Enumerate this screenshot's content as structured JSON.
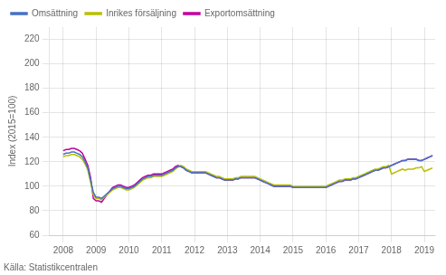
{
  "chart_data": {
    "type": "line",
    "ylabel": "Index (2015=100)",
    "annotations": [
      "Källa: Statistikcentralen"
    ],
    "xlim": [
      2007.58,
      2019.33
    ],
    "xticks": [
      2008,
      2009,
      2010,
      2011,
      2012,
      2013,
      2014,
      2015,
      2016,
      2017,
      2018,
      2019
    ],
    "ylim": [
      60,
      230
    ],
    "yticks": [
      60,
      80,
      100,
      120,
      140,
      160,
      180,
      200,
      220
    ],
    "grid": true,
    "legend": "upper left",
    "x": [
      2008,
      2008.0833333333333,
      2008.1666666666667,
      2008.25,
      2008.3333333333333,
      2008.4166666666667,
      2008.5,
      2008.5833333333333,
      2008.6666666666667,
      2008.75,
      2008.8333333333333,
      2008.9166666666667,
      2009,
      2009.0833333333333,
      2009.1666666666667,
      2009.25,
      2009.3333333333333,
      2009.4166666666667,
      2009.5,
      2009.5833333333333,
      2009.6666666666667,
      2009.75,
      2009.8333333333333,
      2009.9166666666667,
      2010,
      2010.0833333333333,
      2010.1666666666667,
      2010.25,
      2010.3333333333333,
      2010.4166666666667,
      2010.5,
      2010.5833333333333,
      2010.6666666666667,
      2010.75,
      2010.8333333333333,
      2010.9166666666667,
      2011,
      2011.0833333333333,
      2011.1666666666667,
      2011.25,
      2011.3333333333333,
      2011.4166666666667,
      2011.5,
      2011.5833333333333,
      2011.6666666666667,
      2011.75,
      2011.8333333333333,
      2011.9166666666667,
      2012,
      2012.0833333333333,
      2012.1666666666667,
      2012.25,
      2012.3333333333333,
      2012.4166666666667,
      2012.5,
      2012.5833333333333,
      2012.6666666666667,
      2012.75,
      2012.8333333333333,
      2012.9166666666667,
      2013,
      2013.0833333333333,
      2013.1666666666667,
      2013.25,
      2013.3333333333333,
      2013.4166666666667,
      2013.5,
      2013.5833333333333,
      2013.6666666666667,
      2013.75,
      2013.8333333333333,
      2013.9166666666667,
      2014,
      2014.0833333333333,
      2014.1666666666667,
      2014.25,
      2014.3333333333333,
      2014.4166666666667,
      2014.5,
      2014.5833333333333,
      2014.6666666666667,
      2014.75,
      2014.8333333333333,
      2014.9166666666667,
      2015,
      2015.0833333333333,
      2015.1666666666667,
      2015.25,
      2015.3333333333333,
      2015.4166666666667,
      2015.5,
      2015.5833333333333,
      2015.6666666666667,
      2015.75,
      2015.8333333333333,
      2015.9166666666667,
      2016,
      2016.0833333333333,
      2016.1666666666667,
      2016.25,
      2016.3333333333333,
      2016.4166666666667,
      2016.5,
      2016.5833333333333,
      2016.6666666666667,
      2016.75,
      2016.8333333333333,
      2016.9166666666667,
      2017,
      2017.0833333333333,
      2017.1666666666667,
      2017.25,
      2017.3333333333333,
      2017.4166666666667,
      2017.5,
      2017.5833333333333,
      2017.6666666666667,
      2017.75,
      2017.8333333333333,
      2017.9166666666667,
      2018,
      2018.0833333333333,
      2018.1666666666667,
      2018.25,
      2018.3333333333333,
      2018.4166666666667,
      2018.5,
      2018.5833333333333,
      2018.6666666666667,
      2018.75,
      2018.8333333333333,
      2018.9166666666667,
      2019,
      2019.0833333333333,
      2019.1666666666667,
      2019.25
    ],
    "series": [
      {
        "name": "Omsättning",
        "color": "#4472C4",
        "values": [
          126,
          127,
          127,
          128,
          128,
          127,
          126,
          124,
          120,
          115,
          105,
          95,
          91,
          91,
          90,
          92,
          94,
          96,
          98,
          99,
          100,
          100,
          99,
          98,
          98,
          99,
          100,
          102,
          104,
          106,
          107,
          108,
          108,
          109,
          109,
          109,
          109,
          110,
          111,
          112,
          113,
          115,
          116,
          116,
          115,
          113,
          112,
          111,
          111,
          111,
          111,
          111,
          111,
          110,
          109,
          108,
          107,
          107,
          106,
          105,
          105,
          105,
          105,
          106,
          106,
          107,
          107,
          107,
          107,
          107,
          107,
          106,
          105,
          104,
          103,
          102,
          101,
          100,
          100,
          100,
          100,
          100,
          100,
          100,
          99,
          99,
          99,
          99,
          99,
          99,
          99,
          99,
          99,
          99,
          99,
          99,
          99,
          100,
          101,
          102,
          103,
          104,
          104,
          105,
          105,
          105,
          106,
          106,
          107,
          108,
          109,
          110,
          111,
          112,
          113,
          113,
          114,
          115,
          115,
          116,
          117,
          118,
          119,
          120,
          121,
          121,
          122,
          122,
          122,
          122,
          121,
          121,
          122,
          123,
          124,
          125
        ]
      },
      {
        "name": "Inrikes försäljning",
        "color": "#B8C000",
        "values": [
          124,
          125,
          125,
          126,
          126,
          125,
          124,
          122,
          118,
          113,
          103,
          93,
          90,
          90,
          89,
          91,
          93,
          95,
          97,
          98,
          99,
          99,
          98,
          97,
          97,
          98,
          99,
          101,
          103,
          105,
          106,
          107,
          107,
          108,
          108,
          108,
          108,
          109,
          110,
          111,
          112,
          114,
          116,
          117,
          116,
          114,
          113,
          112,
          112,
          112,
          112,
          112,
          112,
          111,
          110,
          109,
          108,
          108,
          107,
          106,
          106,
          106,
          106,
          107,
          107,
          108,
          108,
          108,
          108,
          108,
          108,
          107,
          106,
          105,
          104,
          103,
          102,
          101,
          101,
          101,
          101,
          101,
          101,
          101,
          100,
          100,
          100,
          100,
          100,
          100,
          100,
          100,
          100,
          100,
          100,
          100,
          100,
          101,
          102,
          103,
          104,
          105,
          105,
          106,
          106,
          106,
          107,
          107,
          108,
          109,
          110,
          111,
          112,
          113,
          114,
          114,
          115,
          116,
          116,
          117,
          110,
          111,
          112,
          113,
          114,
          113,
          114,
          114,
          114,
          115,
          115,
          116,
          112,
          113,
          114,
          115
        ]
      },
      {
        "name": "Exportomsättning",
        "color": "#C000A0",
        "values": [
          129,
          130,
          130,
          131,
          131,
          130,
          129,
          127,
          122,
          117,
          107,
          90,
          88,
          88,
          87,
          90,
          93,
          96,
          99,
          100,
          101,
          101,
          100,
          99,
          99,
          100,
          101,
          103,
          105,
          107,
          108,
          109,
          109,
          110,
          110,
          110,
          110,
          111,
          112,
          113,
          114,
          116,
          117,
          116,
          115,
          113,
          112,
          111,
          111,
          111,
          111,
          111,
          111,
          110,
          109,
          108,
          107,
          107,
          106,
          105,
          105,
          105,
          105,
          106,
          106,
          107,
          107,
          107,
          107,
          107,
          107,
          106,
          105,
          104,
          103,
          102,
          101,
          100,
          100,
          100,
          100,
          100,
          100,
          100,
          99,
          99,
          99,
          99,
          99,
          99,
          99,
          99,
          99,
          99,
          99,
          99,
          99,
          100,
          101,
          102,
          103,
          104,
          104,
          105,
          105,
          105,
          106,
          106,
          107,
          108,
          109,
          110,
          111,
          112,
          113,
          113,
          114,
          115,
          115,
          116,
          117,
          118,
          119,
          120,
          121,
          121,
          122,
          122,
          122,
          122,
          121,
          121,
          122,
          123,
          124,
          125
        ]
      }
    ]
  }
}
